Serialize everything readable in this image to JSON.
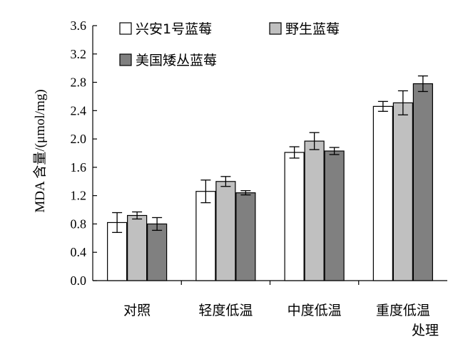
{
  "chart_data": {
    "type": "bar",
    "ylabel": "MDA 含量/(μmol/mg)",
    "xlabel": "处理",
    "ylim": [
      0,
      3.6
    ],
    "yticks": [
      "0.0",
      "0.4",
      "0.8",
      "1.2",
      "1.6",
      "2.0",
      "2.4",
      "2.8",
      "3.2",
      "3.6"
    ],
    "categories": [
      "对照",
      "轻度低温",
      "中度低温",
      "重度低温"
    ],
    "legend_position": "top-left",
    "grid": false,
    "series": [
      {
        "name": "兴安1号蓝莓",
        "color": "#ffffff",
        "values": [
          0.82,
          1.26,
          1.81,
          2.46
        ],
        "errors": [
          0.14,
          0.16,
          0.08,
          0.07
        ]
      },
      {
        "name": "野生蓝莓",
        "color": "#c0c0c0",
        "values": [
          0.92,
          1.4,
          1.97,
          2.51
        ],
        "errors": [
          0.05,
          0.07,
          0.12,
          0.17
        ]
      },
      {
        "name": "美国矮丛蓝莓",
        "color": "#808080",
        "values": [
          0.8,
          1.24,
          1.83,
          2.78
        ],
        "errors": [
          0.09,
          0.03,
          0.05,
          0.11
        ]
      }
    ]
  }
}
